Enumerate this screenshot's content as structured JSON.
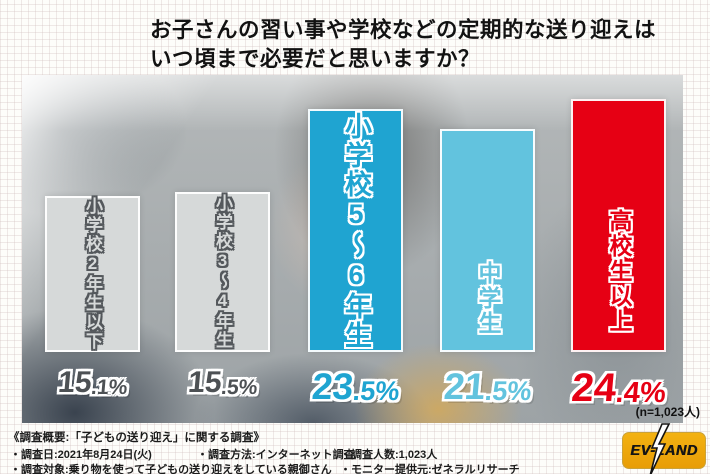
{
  "title": {
    "line1": "お子さんの習い事や学校などの定期的な送り迎えは",
    "line2": "いつ頃まで必要だと思いますか？"
  },
  "chart_data": {
    "type": "bar",
    "title": "お子さんの習い事や学校などの定期的な送り迎えはいつ頃まで必要だと思いますか？",
    "categories": [
      "小学校2年生以下",
      "小学校3〜4年生",
      "小学校5〜6年生",
      "中学生",
      "高校生以上"
    ],
    "values": [
      15.1,
      15.5,
      23.5,
      21.5,
      24.4
    ],
    "value_labels": [
      "15.1%",
      "15.5%",
      "23.5%",
      "21.5%",
      "24.4%"
    ],
    "unit": "%",
    "ylim": [
      0,
      26
    ],
    "sample_note": "(n=1,023人)",
    "colors": [
      "#d6d9d9",
      "#d6d9d9",
      "#1fa4d1",
      "#62c3de",
      "#e60014"
    ],
    "label_outline_colors": [
      "#54585c",
      "#54585c",
      "#ffffff",
      "#ffffff",
      "#ffffff"
    ],
    "value_colors": [
      "#4d5154",
      "#4d5154",
      "#1fa4d1",
      "#62c3de",
      "#e60014"
    ],
    "legend": [],
    "grid": false
  },
  "survey": {
    "heading": "《調査概要:「子どもの送り迎え」に関する調査》",
    "row1": [
      "・調査日:2021年8月24日(火)",
      "・調査方法:インターネット調査",
      "・調査人数:1,023人"
    ],
    "row2": [
      "・調査対象:乗り物を使って子どもの送り迎えをしている親御さん",
      "・モニター提供元:ゼネラルリサーチ"
    ]
  },
  "logo": {
    "text": "EV-LAND"
  }
}
